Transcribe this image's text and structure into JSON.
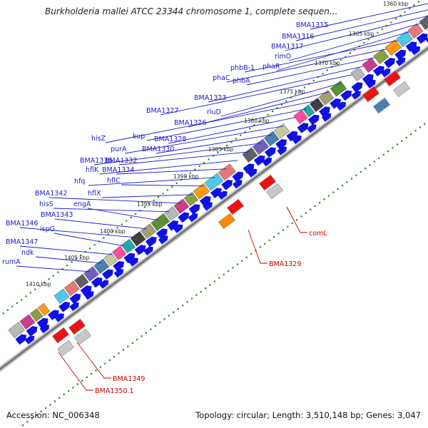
{
  "title": "Burkholderia mallei ATCC 23344 chromosome 1, complete sequen...",
  "footer": {
    "accession": "Accession: NC_006348",
    "summary": "Topology: circular; Length: 3,510,148 bp; Genes: 3,047"
  },
  "colors": {
    "gene_label": "#1a1acc",
    "highlight_label": "#cc0000",
    "forward_arrow": "#1010e6",
    "tick_dots": "#2a8a2a",
    "backbone": "#777777"
  },
  "scale": {
    "unit": "kbp",
    "ticks": [
      "1360 kbp",
      "1365 kbp",
      "1370 kbp",
      "1375 kbp",
      "1380 kbp",
      "1385 kbp",
      "1390 kbp",
      "1395 kbp",
      "1400 kbp",
      "1405 kbp",
      "1410 kbp"
    ]
  },
  "genes": [
    {
      "label": "BMA1315"
    },
    {
      "label": "BMA1316"
    },
    {
      "label": "BMA1317"
    },
    {
      "label": "rimO"
    },
    {
      "label": "phaR"
    },
    {
      "label": "phbB-1"
    },
    {
      "label": "phaC"
    },
    {
      "label": "phbA"
    },
    {
      "label": "BMA1323"
    },
    {
      "label": "BMA1327"
    },
    {
      "label": "rluD"
    },
    {
      "label": "BMA1326"
    },
    {
      "label": "hisZ"
    },
    {
      "label": "kup"
    },
    {
      "label": "BMA1328"
    },
    {
      "label": "purA"
    },
    {
      "label": "BMA1330"
    },
    {
      "label": "BMA1336"
    },
    {
      "label": "BMA1332"
    },
    {
      "label": "hflK"
    },
    {
      "label": "BMA1334"
    },
    {
      "label": "hfq"
    },
    {
      "label": "hflC"
    },
    {
      "label": "hflX"
    },
    {
      "label": "BMA1342"
    },
    {
      "label": "hisS"
    },
    {
      "label": "engA"
    },
    {
      "label": "BMA1343"
    },
    {
      "label": "BMA1346"
    },
    {
      "label": "ispG"
    },
    {
      "label": "BMA1347"
    },
    {
      "label": "ndk"
    },
    {
      "label": "rumA"
    }
  ],
  "highlighted_genes": [
    {
      "label": "comL"
    },
    {
      "label": "BMA1329"
    },
    {
      "label": "BMA1349"
    },
    {
      "label": "BMA1350.1"
    }
  ]
}
